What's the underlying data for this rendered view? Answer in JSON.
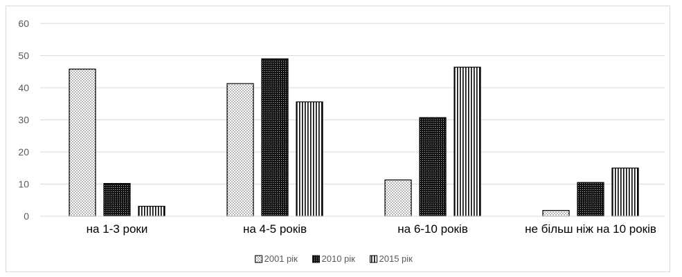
{
  "chart_data": {
    "type": "bar",
    "categories": [
      "на 1-3 роки",
      "на 4-5 років",
      "на 6-10 років",
      "не більш ніж на 10 років"
    ],
    "series": [
      {
        "name": "2001 рік",
        "values": [
          45.8,
          41.3,
          11.3,
          1.8
        ],
        "pattern": "dots"
      },
      {
        "name": "2010 рік",
        "values": [
          10.2,
          49.0,
          30.7,
          10.5
        ],
        "pattern": "dense-dots"
      },
      {
        "name": "2015 рік",
        "values": [
          3.1,
          35.6,
          46.4,
          15.0
        ],
        "pattern": "vertical-lines"
      }
    ],
    "ylim": [
      0,
      60
    ],
    "yticks": [
      0,
      10,
      20,
      30,
      40,
      50,
      60
    ],
    "grid": true,
    "legend_position": "bottom",
    "colors": {
      "bar_outline": "#000000",
      "grid": "#d9d9d9",
      "axis_text": "#595959"
    }
  }
}
